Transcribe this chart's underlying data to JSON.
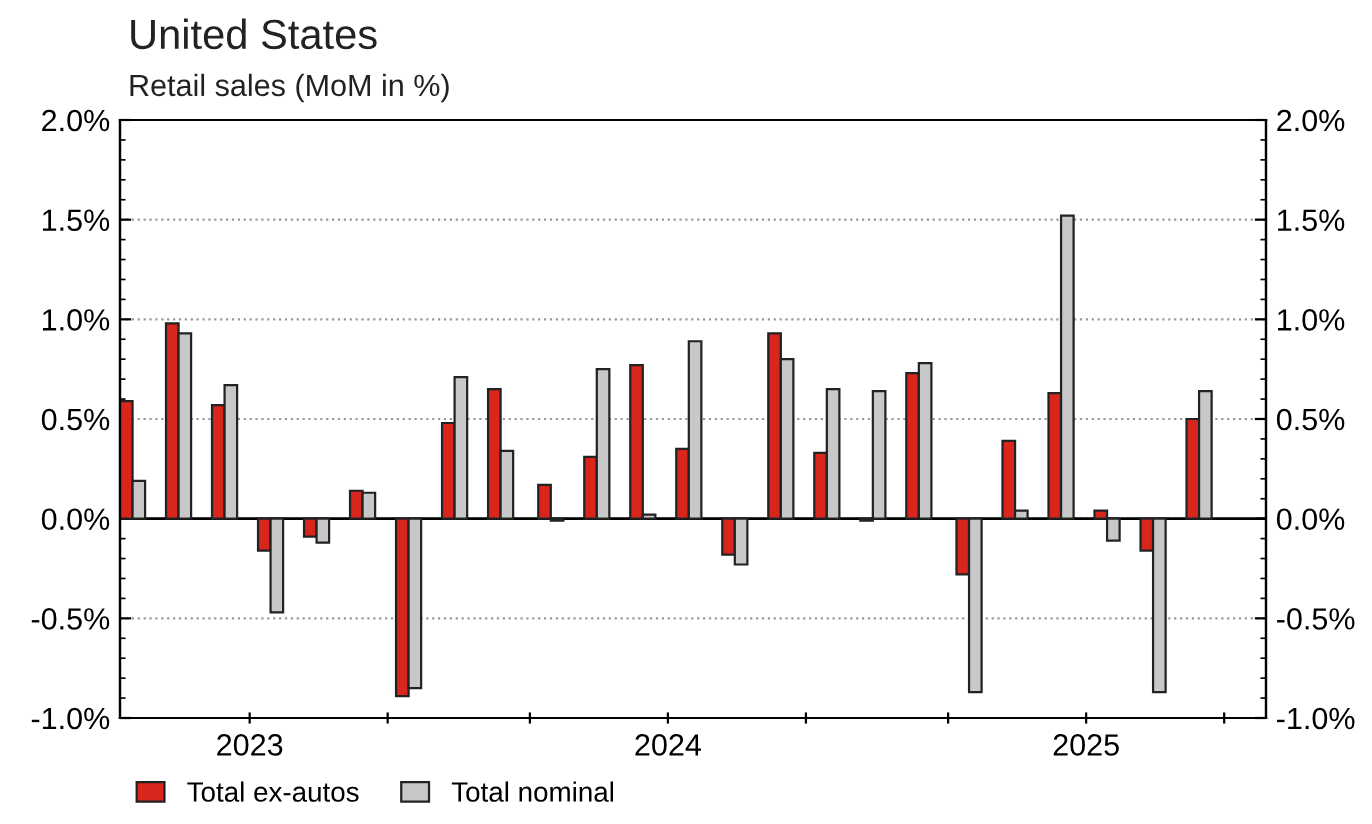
{
  "chart_data": {
    "type": "bar",
    "title": "United States",
    "subtitle": "Retail sales (MoM in %)",
    "x": [
      2022.72,
      2022.83,
      2022.94,
      2023.05,
      2023.16,
      2023.27,
      2023.38,
      2023.49,
      2023.6,
      2023.72,
      2023.83,
      2023.94,
      2024.05,
      2024.16,
      2024.27,
      2024.38,
      2024.49,
      2024.6,
      2024.72,
      2024.83,
      2024.94,
      2025.05,
      2025.16,
      2025.27
    ],
    "series": [
      {
        "name": "Total ex-autos",
        "color": "#d9261c",
        "values": [
          0.59,
          0.98,
          0.57,
          -0.16,
          -0.09,
          0.14,
          -0.89,
          0.48,
          0.65,
          0.17,
          0.31,
          0.77,
          0.35,
          -0.18,
          0.93,
          0.33,
          -0.01,
          0.73,
          -0.28,
          0.39,
          0.63,
          0.04,
          -0.16,
          0.5
        ]
      },
      {
        "name": "Total nominal",
        "color": "#c8c8c8",
        "values": [
          0.19,
          0.93,
          0.67,
          -0.47,
          -0.12,
          0.13,
          -0.85,
          0.71,
          0.34,
          -0.01,
          0.75,
          0.02,
          0.89,
          -0.23,
          0.8,
          0.65,
          0.64,
          0.78,
          -0.87,
          0.04,
          1.52,
          -0.11,
          -0.87,
          0.64
        ]
      }
    ],
    "xlim": [
      2022.69,
      2025.43
    ],
    "xticks": [
      {
        "value": 2023,
        "label": "2023"
      },
      {
        "value": 2023.33,
        "label": null
      },
      {
        "value": 2023.67,
        "label": null
      },
      {
        "value": 2024,
        "label": "2024"
      },
      {
        "value": 2024.33,
        "label": null
      },
      {
        "value": 2024.67,
        "label": null
      },
      {
        "value": 2025,
        "label": "2025"
      },
      {
        "value": 2025.33,
        "label": null
      }
    ],
    "ylim": [
      -1.0,
      2.0
    ],
    "yticks": [
      {
        "value": -1.0,
        "label": "-1.0%"
      },
      {
        "value": -0.5,
        "label": "-0.5%"
      },
      {
        "value": 0.0,
        "label": "0.0%"
      },
      {
        "value": 0.5,
        "label": "0.5%"
      },
      {
        "value": 1.0,
        "label": "1.0%"
      },
      {
        "value": 1.5,
        "label": "1.5%"
      },
      {
        "value": 2.0,
        "label": "2.0%"
      }
    ],
    "y2lim": [
      -1.0,
      2.0
    ],
    "y2ticks": [
      {
        "value": -1.0,
        "label": "-1.0%"
      },
      {
        "value": -0.5,
        "label": "-0.5%"
      },
      {
        "value": 0.0,
        "label": "0.0%"
      },
      {
        "value": 0.5,
        "label": "0.5%"
      },
      {
        "value": 1.0,
        "label": "1.0%"
      },
      {
        "value": 1.5,
        "label": "1.5%"
      },
      {
        "value": 2.0,
        "label": "2.0%"
      }
    ],
    "ref_lines": [
      {
        "axis": "y",
        "value": 0,
        "color": "#000000"
      }
    ],
    "grid": "y",
    "legend": "bottom left"
  }
}
